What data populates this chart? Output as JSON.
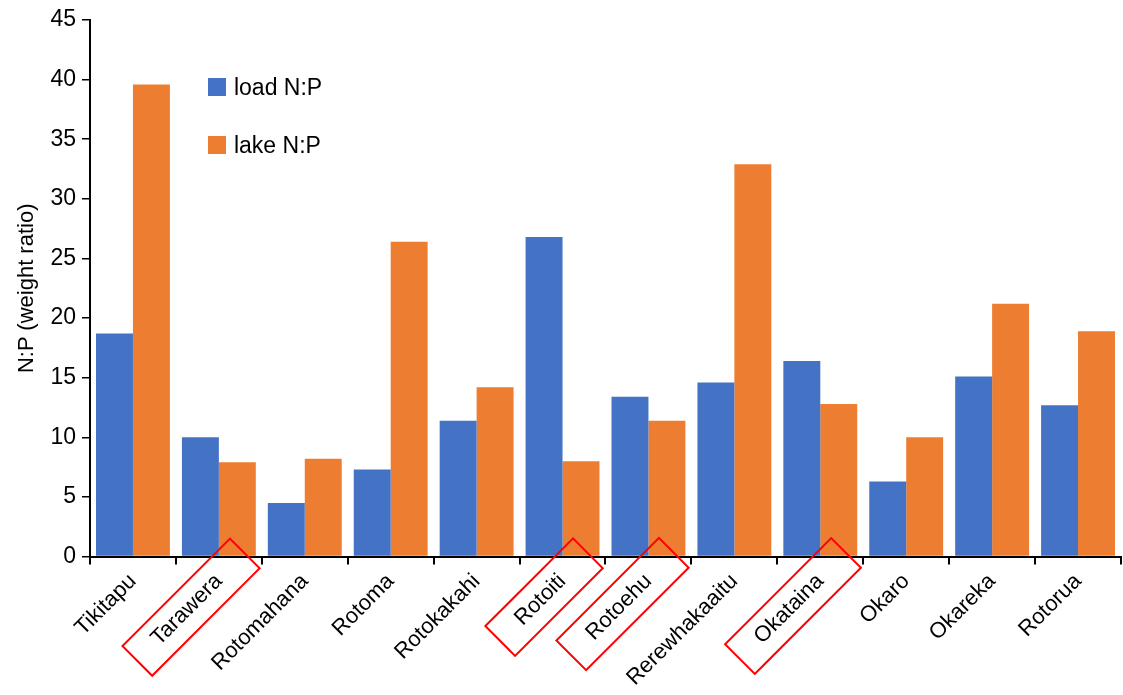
{
  "chart_data": {
    "type": "bar",
    "ylabel": "N:P (weight ratio)",
    "categories": [
      "Tikitapu",
      "Tarawera",
      "Rotomahana",
      "Rotoma",
      "Rotokakahi",
      "Rotoiti",
      "Rotoehu",
      "Rerewhakaaitu",
      "Okataina",
      "Okaro",
      "Okareka",
      "Rotorua"
    ],
    "series": [
      {
        "name": "load N:P",
        "color": "#4472c4",
        "values": [
          18.7,
          10.0,
          4.5,
          7.3,
          11.4,
          26.8,
          13.4,
          14.6,
          16.4,
          6.3,
          15.1,
          12.7
        ]
      },
      {
        "name": "lake N:P",
        "color": "#ed7d31",
        "values": [
          39.6,
          7.9,
          8.2,
          26.4,
          14.2,
          8.0,
          11.4,
          32.9,
          12.8,
          10.0,
          21.2,
          18.9
        ]
      }
    ],
    "ylim": [
      0,
      45
    ],
    "yticks": [
      0,
      5,
      10,
      15,
      20,
      25,
      30,
      35,
      40,
      45
    ],
    "grid": false,
    "legend": "top left"
  }
}
